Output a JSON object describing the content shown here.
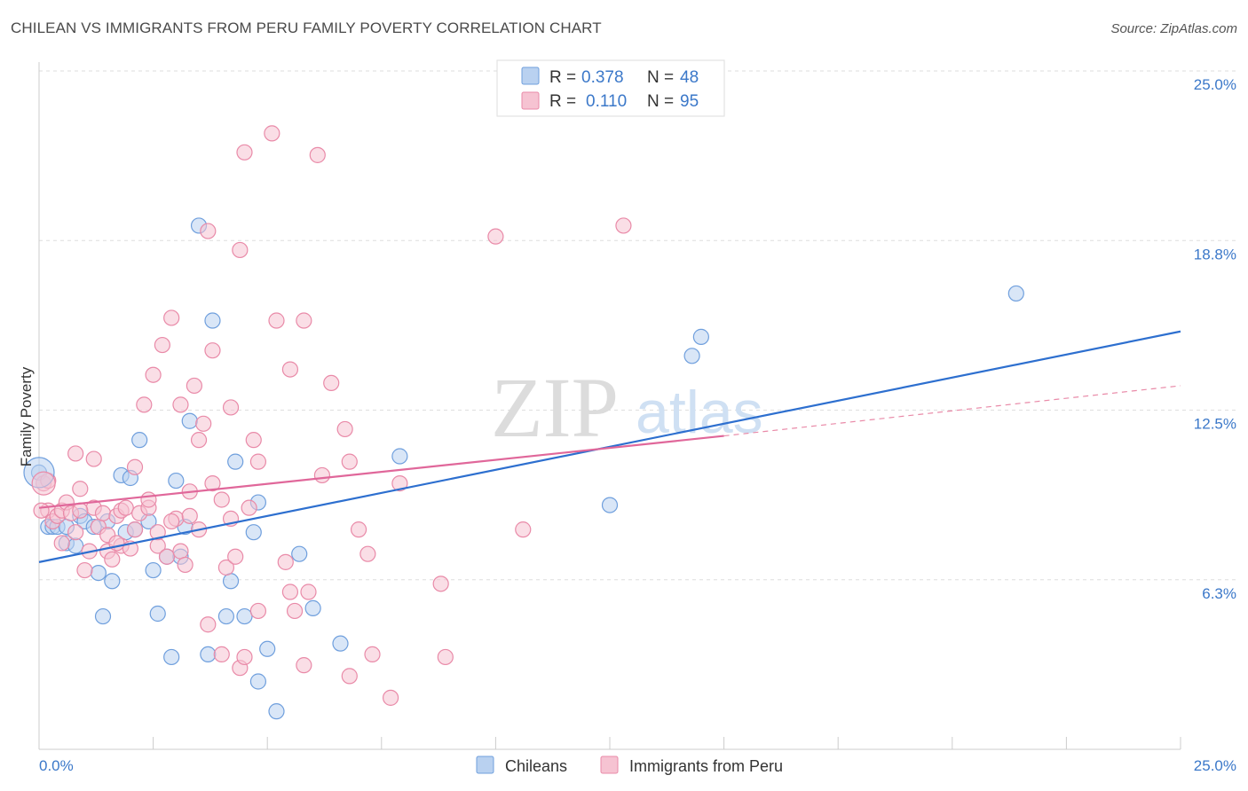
{
  "title": "CHILEAN VS IMMIGRANTS FROM PERU FAMILY POVERTY CORRELATION CHART",
  "source": "Source: ZipAtlas.com",
  "watermark": {
    "zip": "ZIP",
    "atlas": "atlas"
  },
  "chart_data": {
    "type": "scatter",
    "xlabel": "",
    "ylabel": "Family Poverty",
    "xlim": [
      0,
      25
    ],
    "ylim": [
      0,
      25
    ],
    "x_tick_labels": {
      "min": "0.0%",
      "max": "25.0%"
    },
    "y_ticks": [
      {
        "value": 6.25,
        "label": "6.3%"
      },
      {
        "value": 12.5,
        "label": "12.5%"
      },
      {
        "value": 18.75,
        "label": "18.8%"
      },
      {
        "value": 25.0,
        "label": "25.0%"
      }
    ],
    "legend": {
      "rows": [
        {
          "r_label": "R =",
          "r_value": "0.378",
          "n_label": "N =",
          "n_value": "48"
        },
        {
          "r_label": "R =",
          "r_value": "0.110",
          "n_label": "N =",
          "n_value": "95"
        }
      ]
    },
    "series": [
      {
        "name": "Chileans",
        "color": "#6f9fdd",
        "fill": "#b9d1f0",
        "trend": {
          "x0": 0,
          "y0": 6.9,
          "x1": 25,
          "y1": 15.4,
          "style": "solid"
        },
        "points": [
          [
            0.0,
            10.2
          ],
          [
            0.2,
            8.2
          ],
          [
            0.3,
            8.2
          ],
          [
            0.4,
            8.2
          ],
          [
            0.6,
            8.2
          ],
          [
            0.6,
            7.6
          ],
          [
            0.8,
            7.5
          ],
          [
            0.9,
            8.6
          ],
          [
            1.0,
            8.4
          ],
          [
            1.2,
            8.2
          ],
          [
            1.3,
            6.5
          ],
          [
            1.4,
            4.9
          ],
          [
            1.5,
            8.4
          ],
          [
            1.6,
            6.2
          ],
          [
            1.8,
            10.1
          ],
          [
            1.9,
            8.0
          ],
          [
            2.0,
            10.0
          ],
          [
            2.1,
            8.1
          ],
          [
            2.2,
            11.4
          ],
          [
            2.4,
            8.4
          ],
          [
            2.5,
            6.6
          ],
          [
            2.6,
            5.0
          ],
          [
            2.8,
            7.1
          ],
          [
            2.9,
            3.4
          ],
          [
            3.0,
            9.9
          ],
          [
            3.1,
            7.1
          ],
          [
            3.2,
            8.2
          ],
          [
            3.3,
            12.1
          ],
          [
            3.5,
            19.3
          ],
          [
            3.7,
            3.5
          ],
          [
            3.8,
            15.8
          ],
          [
            4.1,
            4.9
          ],
          [
            4.2,
            6.2
          ],
          [
            4.3,
            10.6
          ],
          [
            4.5,
            4.9
          ],
          [
            4.7,
            8.0
          ],
          [
            4.8,
            2.5
          ],
          [
            4.8,
            9.1
          ],
          [
            5.0,
            3.7
          ],
          [
            5.2,
            1.4
          ],
          [
            5.7,
            7.2
          ],
          [
            6.0,
            5.2
          ],
          [
            6.6,
            3.9
          ],
          [
            7.9,
            10.8
          ],
          [
            12.5,
            9.0
          ],
          [
            14.3,
            14.5
          ],
          [
            14.5,
            15.2
          ],
          [
            21.4,
            16.8
          ]
        ]
      },
      {
        "name": "Immigrants from Peru",
        "color": "#e98aa8",
        "fill": "#f6c3d2",
        "trend": {
          "x0": 0,
          "y0": 8.9,
          "x1": 15.0,
          "y1": 11.55,
          "style": "solid"
        },
        "trend_ext": {
          "x0": 15.0,
          "y0": 11.55,
          "x1": 25,
          "y1": 13.4,
          "style": "dashed"
        },
        "points": [
          [
            0.1,
            9.8
          ],
          [
            0.2,
            9.9
          ],
          [
            0.2,
            8.8
          ],
          [
            0.3,
            8.4
          ],
          [
            0.4,
            8.6
          ],
          [
            0.5,
            8.8
          ],
          [
            0.5,
            7.6
          ],
          [
            0.6,
            9.1
          ],
          [
            0.7,
            8.7
          ],
          [
            0.8,
            8.0
          ],
          [
            0.8,
            10.9
          ],
          [
            0.9,
            9.6
          ],
          [
            1.0,
            6.6
          ],
          [
            1.1,
            7.3
          ],
          [
            1.2,
            8.9
          ],
          [
            1.2,
            10.7
          ],
          [
            1.3,
            8.2
          ],
          [
            1.4,
            8.7
          ],
          [
            1.5,
            7.9
          ],
          [
            1.5,
            7.3
          ],
          [
            1.6,
            7.0
          ],
          [
            1.7,
            8.6
          ],
          [
            1.8,
            8.8
          ],
          [
            1.8,
            7.5
          ],
          [
            1.9,
            8.9
          ],
          [
            2.0,
            7.4
          ],
          [
            2.1,
            8.1
          ],
          [
            2.1,
            10.4
          ],
          [
            2.2,
            8.7
          ],
          [
            2.3,
            12.7
          ],
          [
            2.4,
            8.9
          ],
          [
            2.4,
            9.2
          ],
          [
            2.5,
            13.8
          ],
          [
            2.6,
            7.5
          ],
          [
            2.6,
            8.0
          ],
          [
            2.7,
            14.9
          ],
          [
            2.8,
            7.1
          ],
          [
            2.9,
            15.9
          ],
          [
            3.0,
            8.5
          ],
          [
            3.1,
            12.7
          ],
          [
            3.1,
            7.3
          ],
          [
            3.2,
            6.8
          ],
          [
            3.3,
            8.6
          ],
          [
            3.3,
            9.5
          ],
          [
            3.4,
            13.4
          ],
          [
            3.5,
            8.1
          ],
          [
            3.5,
            11.4
          ],
          [
            3.6,
            12.0
          ],
          [
            3.7,
            19.1
          ],
          [
            3.7,
            4.6
          ],
          [
            3.8,
            14.7
          ],
          [
            3.8,
            9.8
          ],
          [
            4.0,
            3.5
          ],
          [
            4.0,
            9.2
          ],
          [
            4.1,
            6.7
          ],
          [
            4.2,
            12.6
          ],
          [
            4.2,
            8.5
          ],
          [
            4.3,
            7.1
          ],
          [
            4.4,
            18.4
          ],
          [
            4.4,
            3.0
          ],
          [
            4.5,
            22.0
          ],
          [
            4.5,
            3.4
          ],
          [
            4.6,
            8.9
          ],
          [
            4.7,
            11.4
          ],
          [
            4.8,
            5.1
          ],
          [
            4.8,
            10.6
          ],
          [
            5.1,
            22.7
          ],
          [
            5.2,
            15.8
          ],
          [
            5.4,
            6.9
          ],
          [
            5.5,
            14.0
          ],
          [
            5.5,
            5.8
          ],
          [
            5.6,
            5.1
          ],
          [
            5.8,
            3.1
          ],
          [
            5.8,
            15.8
          ],
          [
            5.9,
            5.8
          ],
          [
            6.1,
            21.9
          ],
          [
            6.2,
            10.1
          ],
          [
            6.4,
            13.5
          ],
          [
            6.7,
            11.8
          ],
          [
            6.8,
            2.7
          ],
          [
            6.8,
            10.6
          ],
          [
            7.0,
            8.1
          ],
          [
            7.2,
            7.2
          ],
          [
            7.3,
            3.5
          ],
          [
            7.7,
            1.9
          ],
          [
            7.9,
            9.8
          ],
          [
            8.8,
            6.1
          ],
          [
            8.9,
            3.4
          ],
          [
            10.0,
            18.9
          ],
          [
            10.6,
            8.1
          ],
          [
            12.8,
            19.3
          ],
          [
            0.05,
            8.8
          ],
          [
            0.9,
            8.8
          ],
          [
            1.7,
            7.6
          ],
          [
            2.9,
            8.4
          ]
        ]
      }
    ]
  }
}
